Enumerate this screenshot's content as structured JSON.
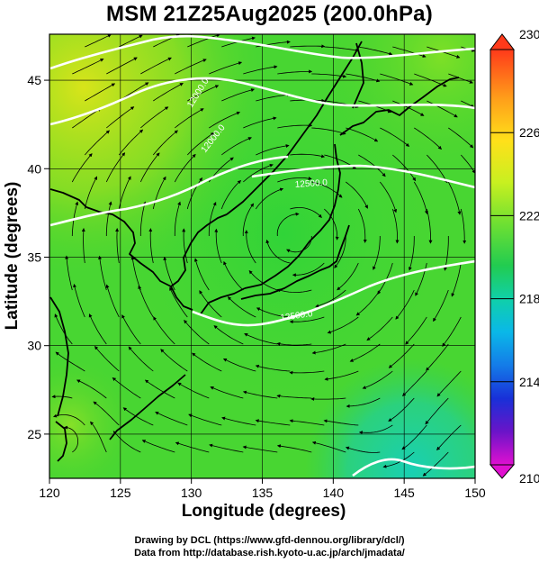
{
  "title": "MSM 21Z25Aug2025 (200.0hPa)",
  "x_label": "Longitude (degrees)",
  "y_label": "Latitude  (degrees)",
  "credits": [
    "Drawing by DCL (https://www.gfd-dennou.org/library/dcl/)",
    "Data from http://database.rish.kyoto-u.ac.jp/arch/jmadata/"
  ],
  "map": {
    "lon_range": [
      120,
      150
    ],
    "lat_range": [
      22.5,
      47.6
    ],
    "x_ticks": [
      "120",
      "125",
      "130",
      "135",
      "140",
      "145",
      "150"
    ],
    "y_ticks": [
      "25",
      "30",
      "35",
      "40",
      "45"
    ],
    "contour_labels": [
      "12000.0",
      "12000.0",
      "12500.0",
      "12500.0"
    ]
  },
  "colorbar": {
    "range": [
      210,
      230
    ],
    "tick_labels": [
      "230",
      "226",
      "222",
      "218",
      "214",
      "210"
    ],
    "colors": [
      "#ff3a1a",
      "#ff8a1a",
      "#ffd21a",
      "#d8f020",
      "#8ee030",
      "#2ed23a",
      "#10c8a0",
      "#08a8e8",
      "#1448e8",
      "#1a10c0",
      "#8a10c8",
      "#e010d0"
    ]
  }
}
